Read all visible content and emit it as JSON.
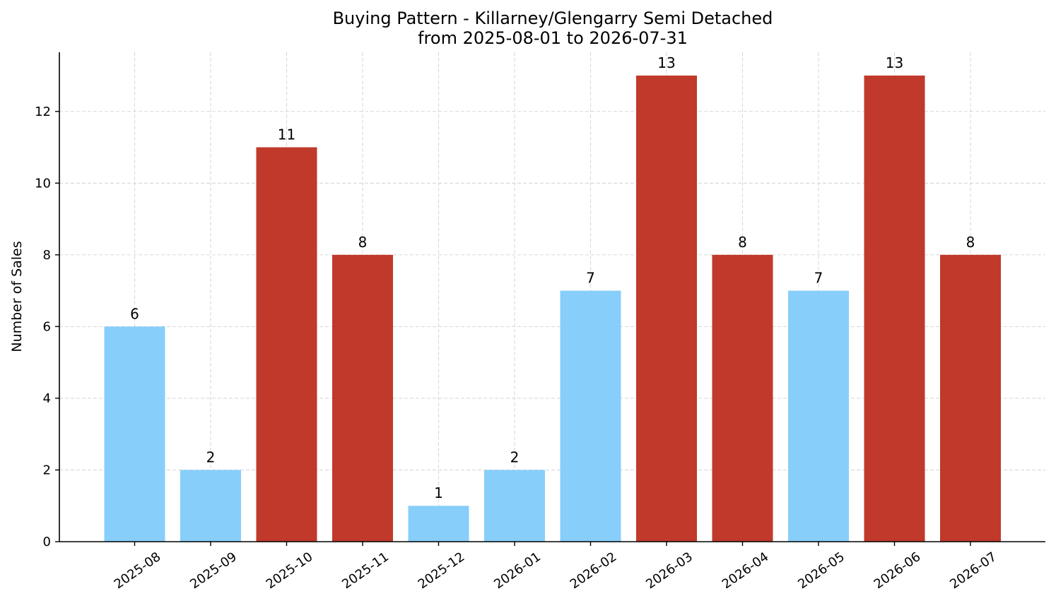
{
  "chart_data": {
    "type": "bar",
    "title": "Buying Pattern - Killarney/Glengarry Semi Detached",
    "subtitle": "from 2025-08-01 to 2026-07-31",
    "xlabel": "",
    "ylabel": "Number of Sales",
    "categories": [
      "2025-08",
      "2025-09",
      "2025-10",
      "2025-11",
      "2025-12",
      "2026-01",
      "2026-02",
      "2026-03",
      "2026-04",
      "2026-05",
      "2026-06",
      "2026-07"
    ],
    "values": [
      6,
      2,
      11,
      8,
      1,
      2,
      7,
      13,
      8,
      7,
      13,
      8
    ],
    "bar_colors": [
      "#87CEFA",
      "#87CEFA",
      "#C0392B",
      "#C0392B",
      "#87CEFA",
      "#87CEFA",
      "#87CEFA",
      "#C0392B",
      "#C0392B",
      "#87CEFA",
      "#C0392B",
      "#C0392B"
    ],
    "ylim": [
      0,
      13.65
    ],
    "yticks": [
      0,
      2,
      4,
      6,
      8,
      10,
      12
    ],
    "grid": true,
    "legend": "none",
    "data_labels": [
      "6",
      "2",
      "11",
      "8",
      "1",
      "2",
      "7",
      "13",
      "8",
      "7",
      "13",
      "8"
    ]
  }
}
